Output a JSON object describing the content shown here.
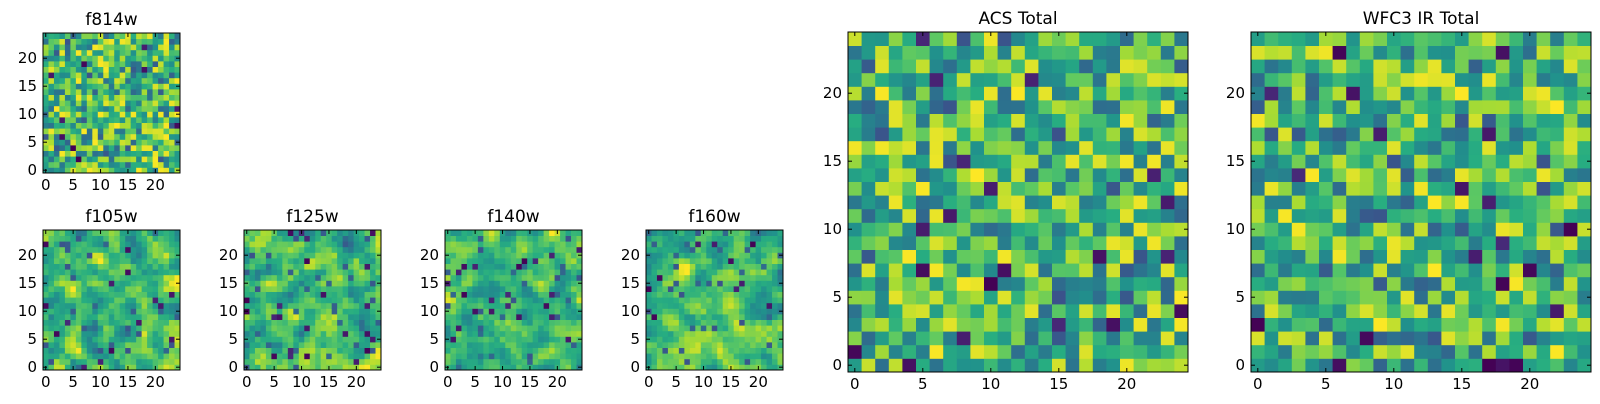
{
  "chart_data": [
    {
      "type": "heatmap",
      "title": "f814w",
      "grid_size": 25,
      "xlim": [
        -0.5,
        24.5
      ],
      "ylim": [
        -0.5,
        24.5
      ],
      "xticks": [
        0,
        5,
        10,
        15,
        20
      ],
      "yticks": [
        0,
        5,
        10,
        15,
        20
      ],
      "colormap": "viridis",
      "grid": false,
      "values": "25x25 random noise pattern (individual pixel values not legible)"
    },
    {
      "type": "heatmap",
      "title": "f105w",
      "grid_size": 25,
      "xlim": [
        -0.5,
        24.5
      ],
      "ylim": [
        -0.5,
        24.5
      ],
      "xticks": [
        0,
        5,
        10,
        15,
        20
      ],
      "yticks": [
        0,
        5,
        10,
        15,
        20
      ],
      "colormap": "viridis",
      "grid": false,
      "values": "25x25 smoothed noise pattern (individual pixel values not legible)"
    },
    {
      "type": "heatmap",
      "title": "f125w",
      "grid_size": 25,
      "xlim": [
        -0.5,
        24.5
      ],
      "ylim": [
        -0.5,
        24.5
      ],
      "xticks": [
        0,
        5,
        10,
        15,
        20
      ],
      "yticks": [
        0,
        5,
        10,
        15,
        20
      ],
      "colormap": "viridis",
      "grid": false,
      "values": "25x25 smoothed noise pattern (individual pixel values not legible)"
    },
    {
      "type": "heatmap",
      "title": "f140w",
      "grid_size": 25,
      "xlim": [
        -0.5,
        24.5
      ],
      "ylim": [
        -0.5,
        24.5
      ],
      "xticks": [
        0,
        5,
        10,
        15,
        20
      ],
      "yticks": [
        0,
        5,
        10,
        15,
        20
      ],
      "colormap": "viridis",
      "grid": false,
      "values": "25x25 smoothed noise pattern (individual pixel values not legible)"
    },
    {
      "type": "heatmap",
      "title": "f160w",
      "grid_size": 25,
      "xlim": [
        -0.5,
        24.5
      ],
      "ylim": [
        -0.5,
        24.5
      ],
      "xticks": [
        0,
        5,
        10,
        15,
        20
      ],
      "yticks": [
        0,
        5,
        10,
        15,
        20
      ],
      "colormap": "viridis",
      "grid": false,
      "values": "25x25 smoothed noise pattern (individual pixel values not legible)"
    },
    {
      "type": "heatmap",
      "title": "ACS Total",
      "grid_size": 25,
      "xlim": [
        -0.5,
        24.5
      ],
      "ylim": [
        -0.5,
        24.5
      ],
      "xticks": [
        0,
        5,
        10,
        15,
        20
      ],
      "yticks": [
        0,
        5,
        10,
        15,
        20
      ],
      "colormap": "viridis",
      "grid": false,
      "values": "25x25 random noise pattern (individual pixel values not legible)"
    },
    {
      "type": "heatmap",
      "title": "WFC3 IR Total",
      "grid_size": 25,
      "xlim": [
        -0.5,
        24.5
      ],
      "ylim": [
        -0.5,
        24.5
      ],
      "xticks": [
        0,
        5,
        10,
        15,
        20
      ],
      "yticks": [
        0,
        5,
        10,
        15,
        20
      ],
      "colormap": "viridis",
      "grid": false,
      "values": "25x25 random noise pattern (individual pixel values not legible)"
    }
  ]
}
